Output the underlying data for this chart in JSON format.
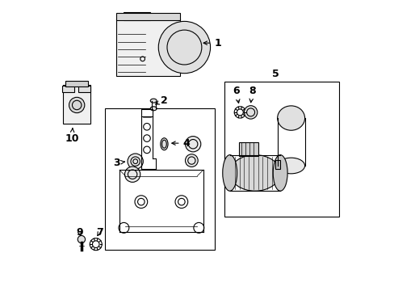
{
  "bg_color": "#ffffff",
  "fig_width": 4.89,
  "fig_height": 3.6,
  "dpi": 100,
  "line_color": "#000000",
  "font_size_labels": 9
}
